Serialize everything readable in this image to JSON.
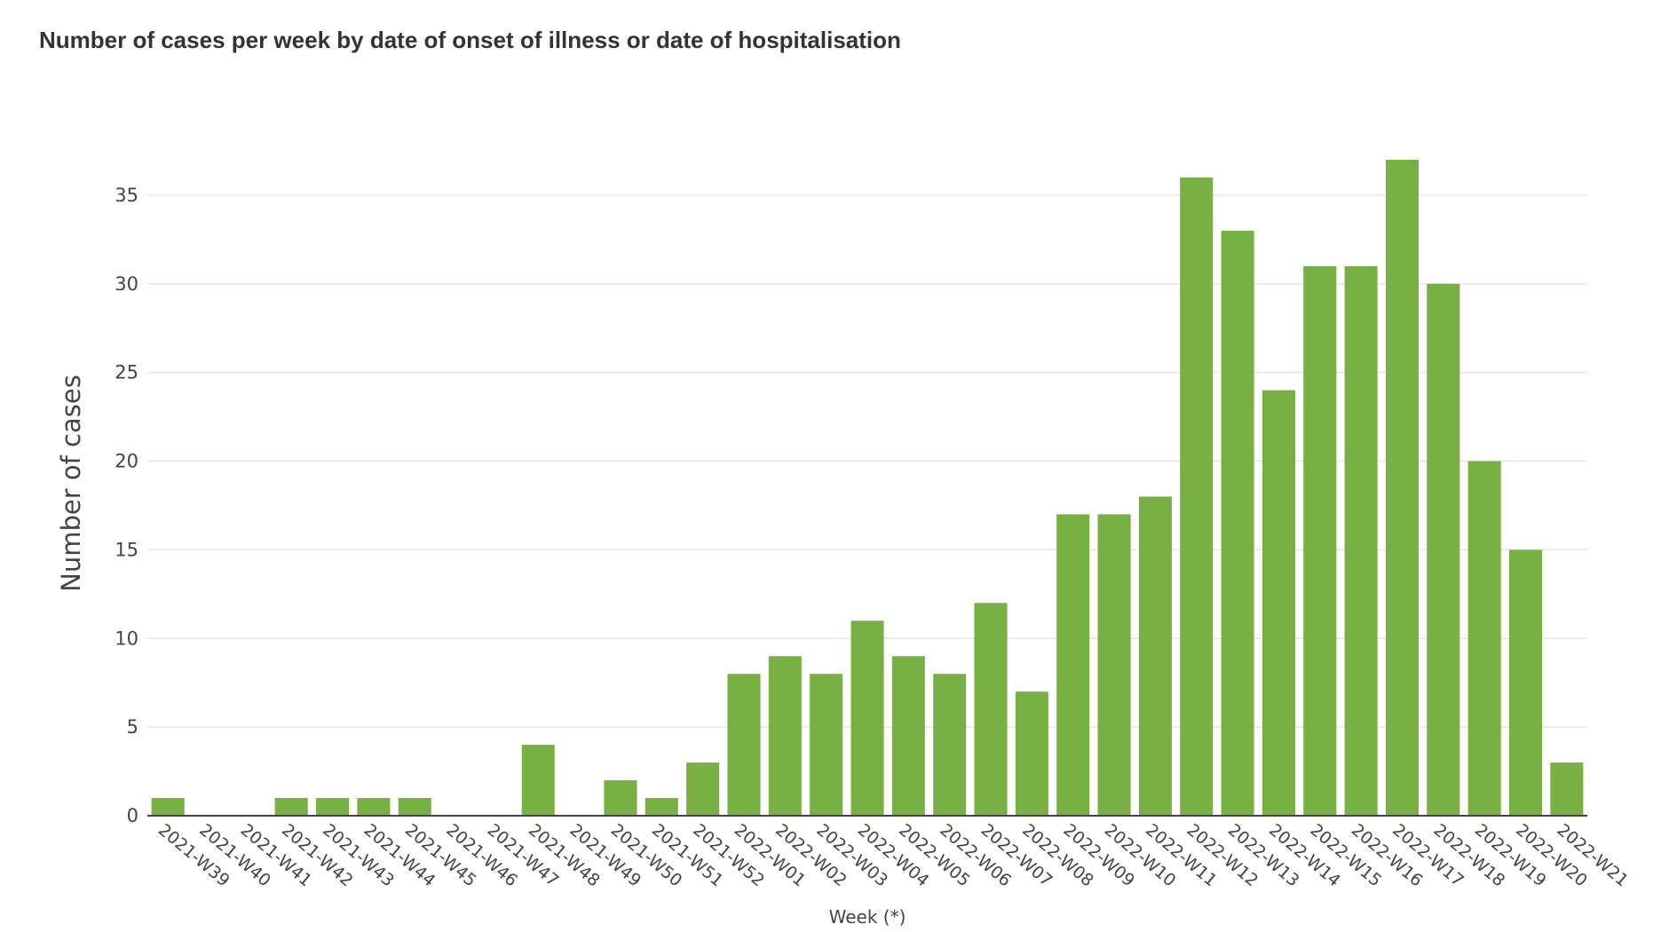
{
  "title": "Number of cases per week by date of onset of illness or date of hospitalisation",
  "colors": {
    "bar": "#79b043",
    "grid": "#e6e6e6",
    "axis": "#444444"
  },
  "chart_data": {
    "type": "bar",
    "title": "Number of cases per week by date of onset of illness or date of hospitalisation",
    "xlabel": "Week (*)",
    "ylabel": "Number of cases",
    "ylim": [
      0,
      38.5
    ],
    "yticks": [
      0,
      5,
      10,
      15,
      20,
      25,
      30,
      35
    ],
    "grid": true,
    "categories": [
      "2021-W39",
      "2021-W40",
      "2021-W41",
      "2021-W42",
      "2021-W43",
      "2021-W44",
      "2021-W45",
      "2021-W46",
      "2021-W47",
      "2021-W48",
      "2021-W49",
      "2021-W50",
      "2021-W51",
      "2021-W52",
      "2022-W01",
      "2022-W02",
      "2022-W03",
      "2022-W04",
      "2022-W05",
      "2022-W06",
      "2022-W07",
      "2022-W08",
      "2022-W09",
      "2022-W10",
      "2022-W11",
      "2022-W12",
      "2022-W13",
      "2022-W14",
      "2022-W15",
      "2022-W16",
      "2022-W17",
      "2022-W18",
      "2022-W19",
      "2022-W20",
      "2022-W21"
    ],
    "values": [
      1,
      0,
      0,
      1,
      1,
      1,
      1,
      0,
      0,
      4,
      0,
      2,
      1,
      3,
      8,
      9,
      8,
      11,
      9,
      8,
      12,
      7,
      17,
      17,
      18,
      36,
      33,
      24,
      31,
      31,
      37,
      30,
      20,
      15,
      3
    ]
  }
}
